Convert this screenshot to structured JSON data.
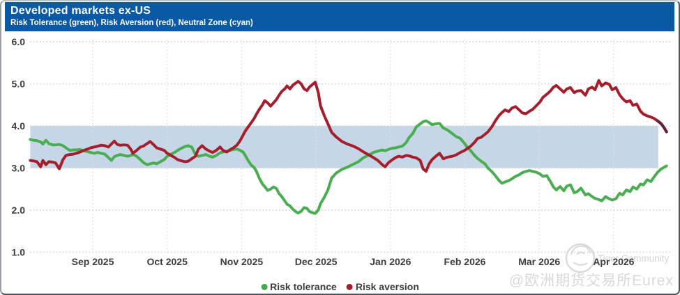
{
  "header": {
    "title": "Developed markets ex-US",
    "subtitle": "Risk Tolerance (green), Risk Aversion (red), Neutral Zone (cyan)"
  },
  "legend": {
    "items": [
      {
        "label": "Risk tolerance",
        "color": "#3fae4a"
      },
      {
        "label": "Risk aversion",
        "color": "#a51e2d"
      }
    ]
  },
  "watermark": {
    "community": "Tiger Community",
    "handle": "@欧洲期货交易所Eurex"
  },
  "colors": {
    "header_bg": "#0959a5",
    "green": "#4bad52",
    "red": "#a51e2d",
    "red_tail": "#63203a",
    "band": "#c5d7e7",
    "grid": "#d9d9d9",
    "axis_text": "#3d3d3d"
  },
  "chart_data": {
    "type": "line",
    "title": "Developed markets ex-US",
    "subtitle": "Risk Tolerance (green), Risk Aversion (red), Neutral Zone (cyan)",
    "x_unit": "months since 2025-08-01 (1.0 = Sep 1 2025, 8.0 = Apr 1 2026)",
    "xlim": [
      0.1,
      8.78
    ],
    "ylim": [
      1.0,
      6.0
    ],
    "grid": "dotted",
    "legend_position": "bottom-center",
    "yticks": [
      {
        "v": 6,
        "label": "6.0"
      },
      {
        "v": 5,
        "label": "5.0"
      },
      {
        "v": 4,
        "label": "4.0"
      },
      {
        "v": 3,
        "label": "3.0"
      },
      {
        "v": 2,
        "label": "2.0"
      },
      {
        "v": 1,
        "label": "1.0"
      }
    ],
    "xticks": [
      {
        "m": 1,
        "label": "Sep 2025"
      },
      {
        "m": 2,
        "label": "Oct 2025"
      },
      {
        "m": 3,
        "label": "Nov 2025"
      },
      {
        "m": 4,
        "label": "Dec 2025"
      },
      {
        "m": 5,
        "label": "Jan 2026"
      },
      {
        "m": 6,
        "label": "Feb 2026"
      },
      {
        "m": 7,
        "label": "Mar 2026"
      },
      {
        "m": 8,
        "label": "Apr 2026"
      }
    ],
    "neutral_zone": {
      "ymin": 3.0,
      "ymax": 4.0,
      "xmin": 0.16,
      "xmax": 8.6,
      "color": "#c5d7e7"
    },
    "x_months": [
      0.16,
      0.2,
      0.25,
      0.3,
      0.33,
      0.37,
      0.41,
      0.46,
      0.5,
      0.55,
      0.6,
      0.64,
      0.69,
      0.74,
      0.78,
      0.83,
      0.88,
      0.93,
      0.97,
      1.02,
      1.07,
      1.11,
      1.16,
      1.21,
      1.25,
      1.29,
      1.33,
      1.37,
      1.42,
      1.47,
      1.51,
      1.54,
      1.59,
      1.64,
      1.68,
      1.73,
      1.77,
      1.82,
      1.86,
      1.91,
      1.96,
      2.0,
      2.05,
      2.1,
      2.14,
      2.19,
      2.24,
      2.28,
      2.33,
      2.38,
      2.42,
      2.47,
      2.52,
      2.57,
      2.61,
      2.66,
      2.71,
      2.75,
      2.8,
      2.85,
      2.89,
      2.94,
      2.98,
      3.02,
      3.05,
      3.09,
      3.13,
      3.17,
      3.2,
      3.24,
      3.28,
      3.31,
      3.35,
      3.39,
      3.43,
      3.47,
      3.5,
      3.54,
      3.58,
      3.61,
      3.65,
      3.69,
      3.73,
      3.76,
      3.8,
      3.84,
      3.88,
      3.91,
      3.95,
      3.99,
      4.03,
      4.06,
      4.11,
      4.16,
      4.21,
      4.27,
      4.35,
      4.42,
      4.5,
      4.57,
      4.64,
      4.7,
      4.77,
      4.83,
      4.89,
      4.93,
      4.97,
      5.02,
      5.07,
      5.11,
      5.16,
      5.21,
      5.25,
      5.3,
      5.35,
      5.4,
      5.44,
      5.48,
      5.52,
      5.56,
      5.61,
      5.66,
      5.71,
      5.77,
      5.83,
      5.88,
      5.94,
      5.99,
      6.03,
      6.08,
      6.13,
      6.17,
      6.22,
      6.27,
      6.31,
      6.36,
      6.41,
      6.46,
      6.5,
      6.54,
      6.59,
      6.63,
      6.68,
      6.73,
      6.77,
      6.82,
      6.87,
      6.91,
      6.96,
      7.01,
      7.05,
      7.1,
      7.15,
      7.19,
      7.23,
      7.28,
      7.33,
      7.37,
      7.42,
      7.47,
      7.51,
      7.56,
      7.62,
      7.66,
      7.71,
      7.75,
      7.8,
      7.84,
      7.89,
      7.94,
      7.98,
      8.03,
      8.08,
      8.12,
      8.17,
      8.22,
      8.26,
      8.31,
      8.36,
      8.4,
      8.45,
      8.5,
      8.54,
      8.59,
      8.64,
      8.68,
      8.71
    ],
    "series": [
      {
        "name": "Risk tolerance",
        "color": "#4bad52",
        "values": [
          3.68,
          3.66,
          3.65,
          3.62,
          3.57,
          3.66,
          3.58,
          3.55,
          3.55,
          3.56,
          3.53,
          3.48,
          3.42,
          3.43,
          3.43,
          3.44,
          3.41,
          3.39,
          3.37,
          3.35,
          3.37,
          3.35,
          3.33,
          3.25,
          3.18,
          3.27,
          3.3,
          3.32,
          3.3,
          3.28,
          3.3,
          3.32,
          3.28,
          3.2,
          3.13,
          3.08,
          3.1,
          3.12,
          3.1,
          3.15,
          3.2,
          3.28,
          3.33,
          3.37,
          3.42,
          3.47,
          3.51,
          3.53,
          3.5,
          3.32,
          3.28,
          3.3,
          3.32,
          3.28,
          3.26,
          3.3,
          3.36,
          3.38,
          3.4,
          3.42,
          3.44,
          3.45,
          3.42,
          3.38,
          3.3,
          3.17,
          3.07,
          3.01,
          2.92,
          2.75,
          2.62,
          2.56,
          2.47,
          2.5,
          2.55,
          2.51,
          2.4,
          2.32,
          2.22,
          2.14,
          2.1,
          2.02,
          1.96,
          1.93,
          1.97,
          2.06,
          2.04,
          1.97,
          1.94,
          1.92,
          2.0,
          2.15,
          2.3,
          2.48,
          2.76,
          2.88,
          2.97,
          3.02,
          3.09,
          3.15,
          3.25,
          3.3,
          3.37,
          3.4,
          3.43,
          3.41,
          3.44,
          3.47,
          3.48,
          3.5,
          3.52,
          3.6,
          3.72,
          3.82,
          3.98,
          4.05,
          4.1,
          4.12,
          4.08,
          4.03,
          4.05,
          4.06,
          3.95,
          3.9,
          3.82,
          3.75,
          3.7,
          3.6,
          3.5,
          3.41,
          3.3,
          3.23,
          3.16,
          3.1,
          3.0,
          2.92,
          2.82,
          2.7,
          2.64,
          2.67,
          2.7,
          2.74,
          2.8,
          2.84,
          2.89,
          2.92,
          2.94,
          2.92,
          2.9,
          2.86,
          2.8,
          2.82,
          2.68,
          2.55,
          2.48,
          2.56,
          2.46,
          2.57,
          2.6,
          2.41,
          2.44,
          2.52,
          2.36,
          2.39,
          2.32,
          2.28,
          2.25,
          2.22,
          2.32,
          2.27,
          2.24,
          2.27,
          2.4,
          2.36,
          2.48,
          2.44,
          2.55,
          2.5,
          2.62,
          2.6,
          2.72,
          2.68,
          2.78,
          2.9,
          2.98,
          3.02,
          3.05
        ]
      },
      {
        "name": "Risk aversion",
        "color": "#a51e2d",
        "tail": {
          "n": 4,
          "color": "#63203a"
        },
        "values": [
          3.18,
          3.17,
          3.15,
          3.03,
          3.18,
          3.08,
          3.15,
          3.14,
          3.12,
          2.98,
          3.2,
          3.3,
          3.32,
          3.33,
          3.35,
          3.38,
          3.42,
          3.45,
          3.48,
          3.5,
          3.52,
          3.54,
          3.53,
          3.5,
          3.57,
          3.64,
          3.56,
          3.54,
          3.55,
          3.54,
          3.45,
          3.35,
          3.42,
          3.5,
          3.52,
          3.58,
          3.63,
          3.55,
          3.48,
          3.45,
          3.42,
          3.35,
          3.3,
          3.25,
          3.2,
          3.17,
          3.15,
          3.16,
          3.22,
          3.28,
          3.45,
          3.53,
          3.45,
          3.4,
          3.37,
          3.42,
          3.5,
          3.42,
          3.38,
          3.44,
          3.48,
          3.55,
          3.65,
          3.78,
          3.88,
          3.98,
          4.08,
          4.18,
          4.28,
          4.4,
          4.5,
          4.6,
          4.55,
          4.47,
          4.55,
          4.63,
          4.72,
          4.82,
          4.88,
          4.95,
          4.88,
          4.97,
          5.02,
          5.06,
          5.0,
          4.88,
          4.84,
          4.92,
          4.98,
          5.04,
          4.8,
          4.48,
          4.25,
          4.05,
          3.85,
          3.74,
          3.63,
          3.57,
          3.52,
          3.46,
          3.38,
          3.32,
          3.25,
          3.18,
          3.08,
          3.03,
          3.12,
          3.19,
          3.25,
          3.28,
          3.26,
          3.3,
          3.29,
          3.26,
          3.24,
          3.18,
          2.98,
          2.92,
          3.1,
          3.2,
          3.28,
          3.35,
          3.22,
          3.26,
          3.28,
          3.31,
          3.37,
          3.41,
          3.46,
          3.52,
          3.61,
          3.7,
          3.73,
          3.8,
          3.86,
          3.97,
          4.12,
          4.25,
          4.32,
          4.38,
          4.34,
          4.42,
          4.46,
          4.38,
          4.31,
          4.29,
          4.35,
          4.39,
          4.48,
          4.57,
          4.68,
          4.75,
          4.83,
          4.92,
          4.96,
          4.88,
          4.8,
          4.88,
          4.91,
          4.79,
          4.83,
          4.84,
          4.73,
          4.88,
          4.92,
          4.86,
          5.08,
          4.95,
          5.02,
          4.99,
          4.86,
          4.91,
          4.74,
          4.65,
          4.57,
          4.6,
          4.49,
          4.52,
          4.35,
          4.28,
          4.24,
          4.21,
          4.18,
          4.12,
          4.05,
          3.95,
          3.86
        ]
      }
    ]
  }
}
